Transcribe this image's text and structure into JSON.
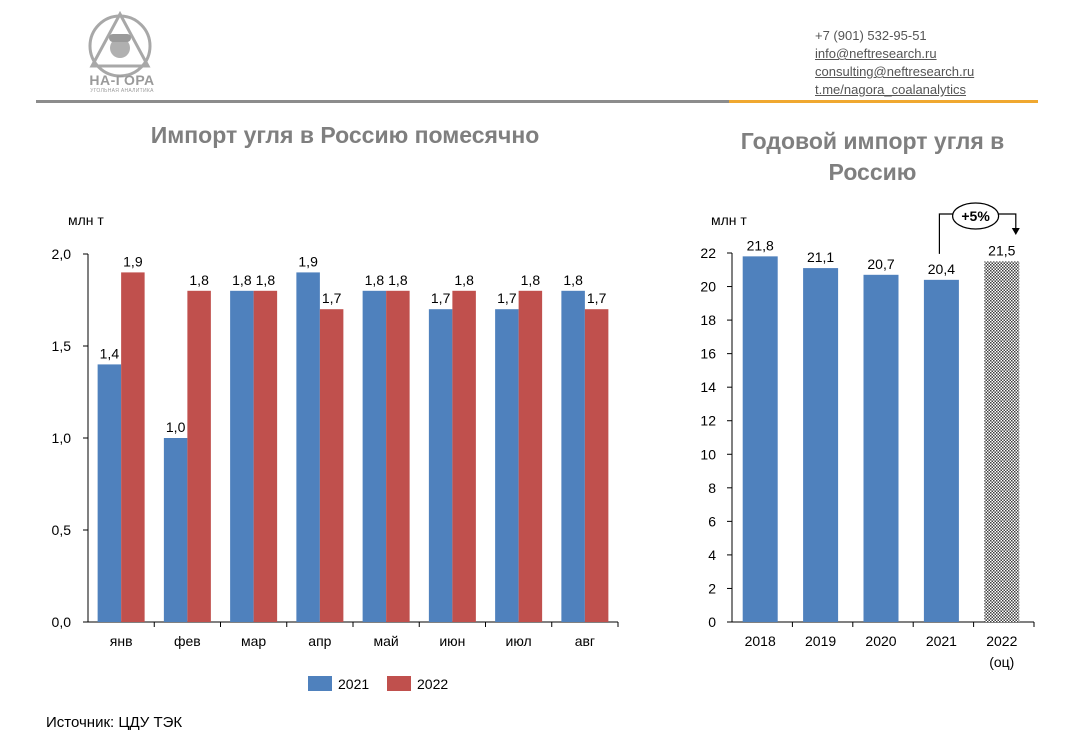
{
  "logo": {
    "name": "НА-ГОРА",
    "subtitle": "УГОЛЬНАЯ АНАЛИТИКА"
  },
  "contacts": {
    "phone": "+7 (901) 532-95-51",
    "email_info": "info@neftresearch.ru",
    "email_consulting": "consulting@neftresearch.ru",
    "telegram": "t.me/nagora_coalanalytics"
  },
  "colors": {
    "accent_gray": "#8c8c8c",
    "accent_orange": "#f0a830",
    "series_2021": "#4f81bd",
    "series_2022": "#c0504d"
  },
  "source": "Источник: ЦДУ ТЭК",
  "chart_data": [
    {
      "type": "bar",
      "title": "Импорт угля в Россию помесячно",
      "ylabel": "млн т",
      "xlabel": "",
      "ylim": [
        0,
        2.0
      ],
      "yticks": [
        "0,0",
        "0,5",
        "1,0",
        "1,5",
        "2,0"
      ],
      "grid": false,
      "legend": "bottom",
      "categories": [
        "янв",
        "фев",
        "мар",
        "апр",
        "май",
        "июн",
        "июл",
        "авг"
      ],
      "series": [
        {
          "name": "2021",
          "values": [
            1.4,
            1.0,
            1.8,
            1.9,
            1.8,
            1.7,
            1.7,
            1.8
          ],
          "labels": [
            "1,4",
            "1,0",
            "1,8",
            "1,9",
            "1,8",
            "1,7",
            "1,7",
            "1,8"
          ]
        },
        {
          "name": "2022",
          "values": [
            1.9,
            1.8,
            1.8,
            1.7,
            1.8,
            1.8,
            1.8,
            1.7
          ],
          "labels": [
            "1,9",
            "1,8",
            "1,8",
            "1,7",
            "1,8",
            "1,8",
            "1,8",
            "1,7"
          ]
        }
      ]
    },
    {
      "type": "bar",
      "title": "Годовой импорт угля в Россию",
      "ylabel": "млн т",
      "xlabel": "",
      "ylim": [
        0,
        22
      ],
      "yticks": [
        "0",
        "2",
        "4",
        "6",
        "8",
        "10",
        "12",
        "14",
        "16",
        "18",
        "20",
        "22"
      ],
      "grid": false,
      "categories": [
        "2018",
        "2019",
        "2020",
        "2021",
        "2022"
      ],
      "category_sublabels": [
        "",
        "",
        "",
        "",
        "(оц)"
      ],
      "values": [
        21.8,
        21.1,
        20.7,
        20.4,
        21.5
      ],
      "labels": [
        "21,8",
        "21,1",
        "20,7",
        "20,4",
        "21,5"
      ],
      "estimated": [
        false,
        false,
        false,
        false,
        true
      ],
      "annotation": "+5%"
    }
  ]
}
